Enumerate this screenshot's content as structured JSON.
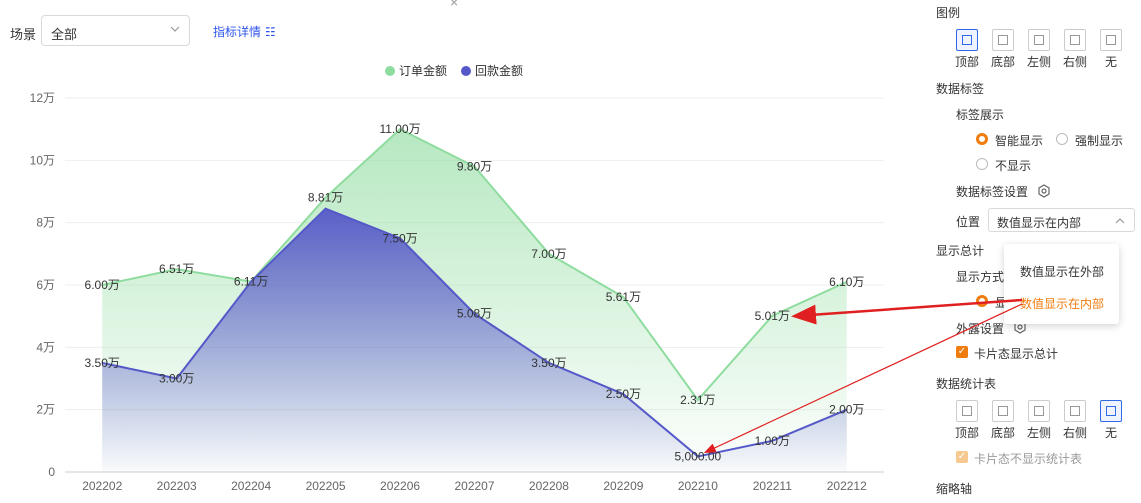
{
  "filter": {
    "label": "场景",
    "value": "全部",
    "detail_link": "指标详情"
  },
  "chart_data": {
    "type": "line",
    "categories": [
      "202202",
      "202203",
      "202204",
      "202205",
      "202206",
      "202207",
      "202208",
      "202209",
      "202210",
      "202211",
      "202212"
    ],
    "series": [
      {
        "name": "订单金额",
        "color": "#8fdc9f",
        "values": [
          60000,
          65100,
          61100,
          88100,
          110000,
          98000,
          70000,
          56100,
          23100,
          50100,
          61000
        ],
        "labels": [
          "6.00万",
          "6.51万",
          "6.11万",
          "8.81万",
          "11.00万",
          "9.80万",
          "7.00万",
          "5.61万",
          "2.31万",
          "5.01万",
          "6.10万"
        ]
      },
      {
        "name": "回款金额",
        "color": "#5558c8",
        "values": [
          35000,
          30000,
          61100,
          84500,
          75000,
          50800,
          35000,
          25000,
          5000,
          10000,
          20000
        ],
        "labels": [
          "3.50万",
          "3.00万",
          "",
          "",
          "7.50万",
          "5.08万",
          "3.50万",
          "2.50万",
          "5,000.00",
          "1.00万",
          "2.00万"
        ]
      }
    ],
    "yticks": [
      "0",
      "2万",
      "4万",
      "6万",
      "8万",
      "10万",
      "12万"
    ],
    "ylim": [
      0,
      120000
    ],
    "legend_position": "top-center",
    "grid": true
  },
  "panel": {
    "legend_title": "图例",
    "legend_options": [
      "顶部",
      "底部",
      "左侧",
      "右侧",
      "无"
    ],
    "data_label_title": "数据标签",
    "label_display": "标签展示",
    "smart_show": "智能显示",
    "force_show": "强制显示",
    "no_show": "不显示",
    "label_settings": "数据标签设置",
    "position_label": "位置",
    "position_value": "数值显示在内部",
    "dropdown_options": [
      "数值显示在外部",
      "数值显示在内部"
    ],
    "total_title": "显示总计",
    "display_mode": "显示方式",
    "display_mode_partial": "显",
    "outer_settings": "外露设置",
    "card_total": "卡片态显示总计",
    "stats_title": "数据统计表",
    "stats_options": [
      "顶部",
      "底部",
      "左侧",
      "右侧",
      "无"
    ],
    "card_no_stats": "卡片态不显示统计表",
    "thumbnail_axis": "缩略轴",
    "accent_color": "#f07c10",
    "selected_color": "#2f6be6"
  }
}
